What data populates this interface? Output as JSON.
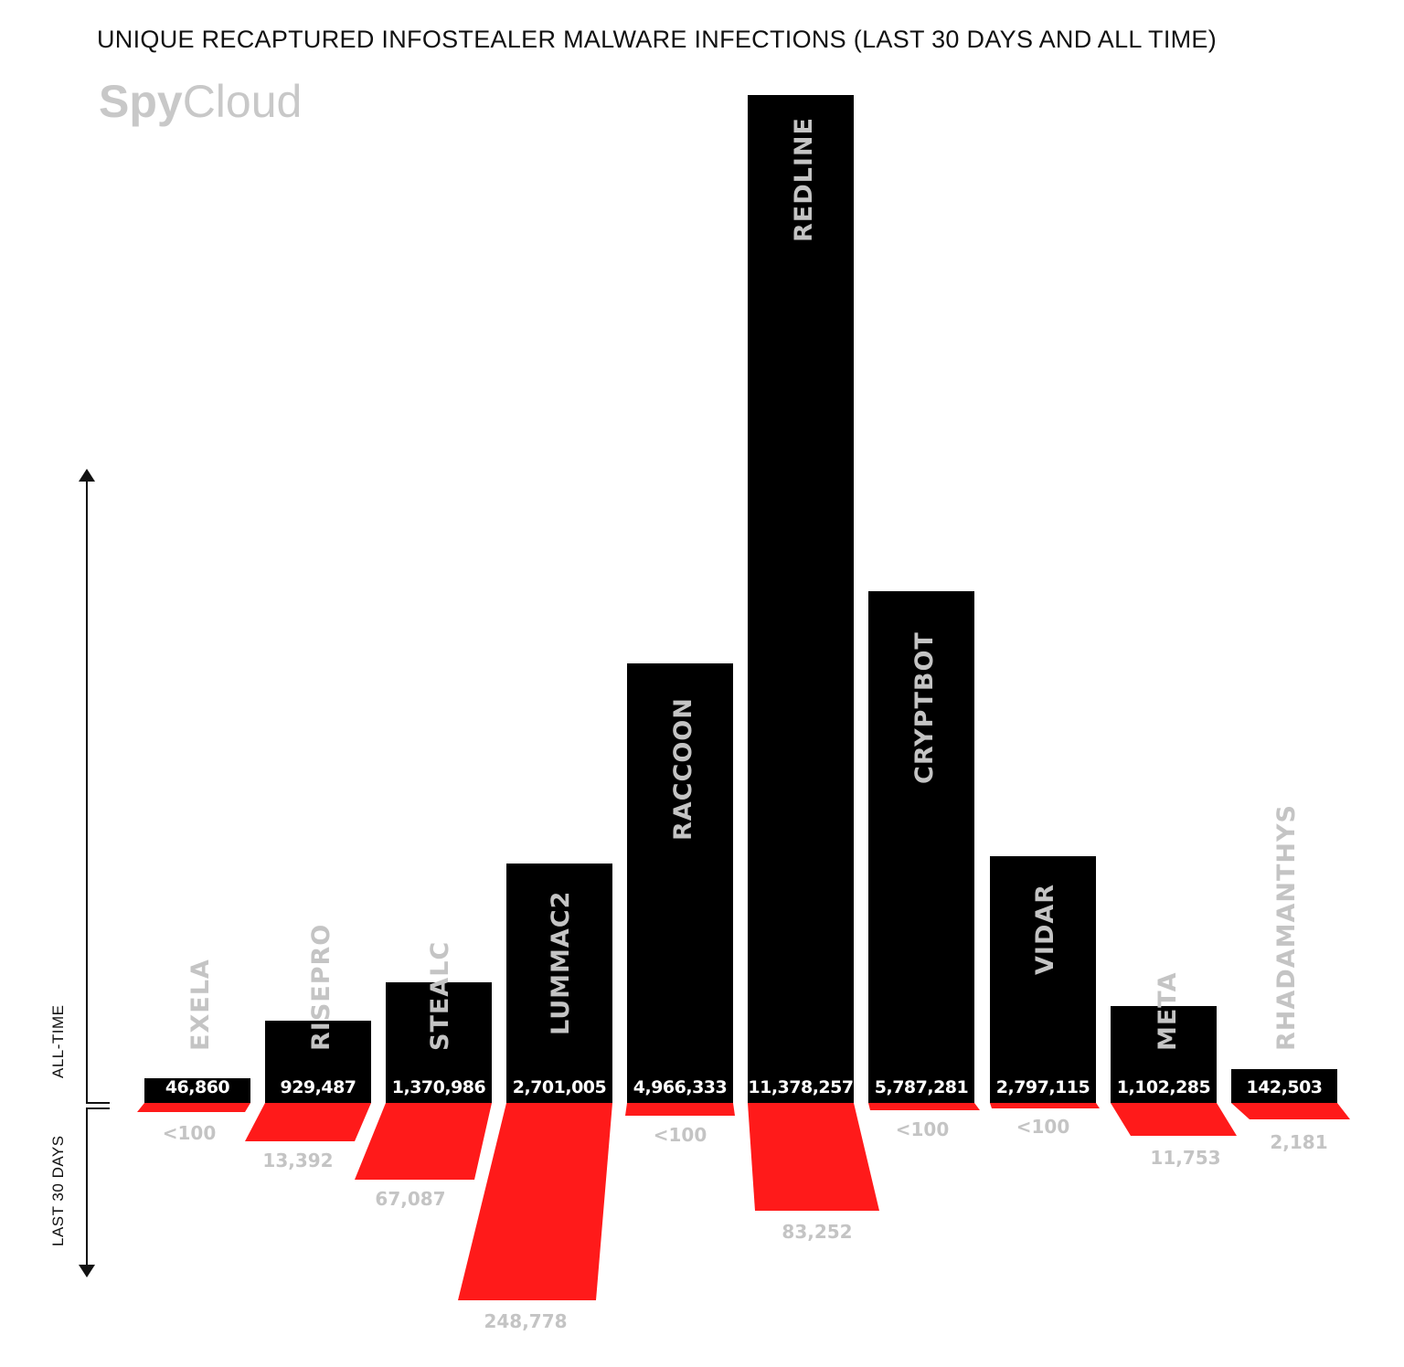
{
  "header": {
    "title": "UNIQUE RECAPTURED INFOSTEALER MALWARE INFECTIONS (LAST 30 DAYS AND ALL TIME)",
    "logo_bold": "Spy",
    "logo_light": "Cloud"
  },
  "axis": {
    "up_label": "ALL-TIME",
    "down_label": "LAST 30 DAYS"
  },
  "colors": {
    "all_time_bar": "#000000",
    "last_30_days": "#ff1a1a",
    "label_gray": "#c4c4c4"
  },
  "bars": [
    {
      "name": "EXELA",
      "all_time": "46,860",
      "last_30": "<100"
    },
    {
      "name": "RISEPRO",
      "all_time": "929,487",
      "last_30": "13,392"
    },
    {
      "name": "STEALC",
      "all_time": "1,370,986",
      "last_30": "67,087"
    },
    {
      "name": "LUMMAC2",
      "all_time": "2,701,005",
      "last_30": "248,778"
    },
    {
      "name": "RACCOON",
      "all_time": "4,966,333",
      "last_30": "<100"
    },
    {
      "name": "REDLINE",
      "all_time": "11,378,257",
      "last_30": "83,252"
    },
    {
      "name": "CRYPTBOT",
      "all_time": "5,787,281",
      "last_30": "<100"
    },
    {
      "name": "VIDAR",
      "all_time": "2,797,115",
      "last_30": "<100"
    },
    {
      "name": "META",
      "all_time": "1,102,285",
      "last_30": "11,753"
    },
    {
      "name": "RHADAMANTHYS",
      "all_time": "142,503",
      "last_30": "2,181"
    }
  ],
  "chart_data": {
    "type": "bar",
    "title": "UNIQUE RECAPTURED INFOSTEALER MALWARE INFECTIONS (LAST 30 DAYS AND ALL TIME)",
    "xlabel": "",
    "ylabel": "ALL-TIME (up) / LAST 30 DAYS (down)",
    "categories": [
      "EXELA",
      "RISEPRO",
      "STEALC",
      "LUMMAC2",
      "RACCOON",
      "REDLINE",
      "CRYPTBOT",
      "VIDAR",
      "META",
      "RHADAMANTHYS"
    ],
    "series": [
      {
        "name": "All-time",
        "color": "#000000",
        "direction": "up",
        "values": [
          46860,
          929487,
          1370986,
          2701005,
          4966333,
          11378257,
          5787281,
          2797115,
          1102285,
          142503
        ]
      },
      {
        "name": "Last 30 days",
        "color": "#ff1a1a",
        "direction": "down",
        "values": [
          "<100",
          13392,
          67087,
          248778,
          "<100",
          83252,
          "<100",
          "<100",
          11753,
          2181
        ]
      }
    ],
    "grid": false,
    "legend": "axis labels on left (ALL-TIME arrow up, LAST 30 DAYS arrow down)",
    "watermark": "SpyCloud"
  }
}
